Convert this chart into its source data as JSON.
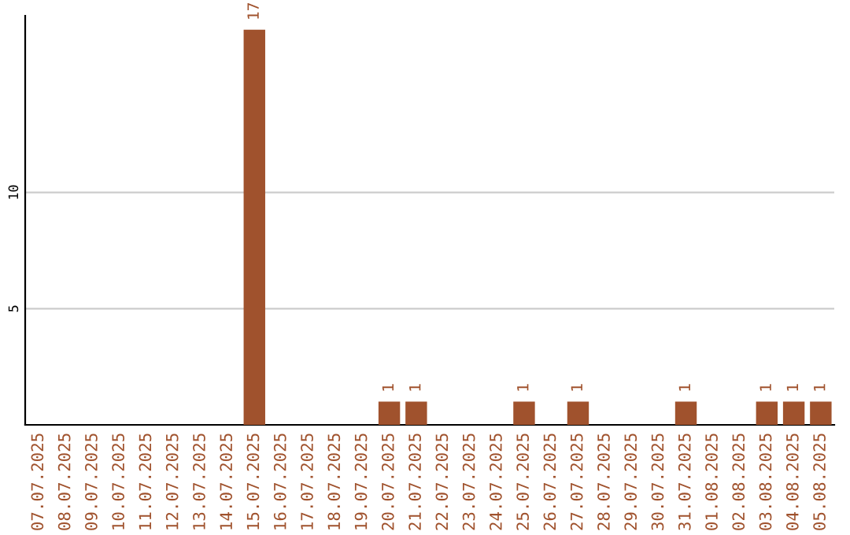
{
  "chart_data": {
    "type": "bar",
    "categories": [
      "07.07.2025",
      "08.07.2025",
      "09.07.2025",
      "10.07.2025",
      "11.07.2025",
      "12.07.2025",
      "13.07.2025",
      "14.07.2025",
      "15.07.2025",
      "16.07.2025",
      "17.07.2025",
      "18.07.2025",
      "19.07.2025",
      "20.07.2025",
      "21.07.2025",
      "22.07.2025",
      "23.07.2025",
      "24.07.2025",
      "25.07.2025",
      "26.07.2025",
      "27.07.2025",
      "28.07.2025",
      "29.07.2025",
      "30.07.2025",
      "31.07.2025",
      "01.08.2025",
      "02.08.2025",
      "03.08.2025",
      "04.08.2025",
      "05.08.2025"
    ],
    "values": [
      0,
      0,
      0,
      0,
      0,
      0,
      0,
      0,
      17,
      0,
      0,
      0,
      0,
      1,
      1,
      0,
      0,
      0,
      1,
      0,
      1,
      0,
      0,
      0,
      1,
      0,
      0,
      1,
      1,
      1
    ],
    "value_labels": [
      null,
      null,
      null,
      null,
      null,
      null,
      null,
      null,
      "17",
      null,
      null,
      null,
      null,
      "1",
      "1",
      null,
      null,
      null,
      "1",
      null,
      "1",
      null,
      null,
      null,
      "1",
      null,
      null,
      "1",
      "1",
      "1"
    ],
    "color": "#a0522d",
    "ylim": [
      0,
      17.6
    ],
    "yticks": [
      5,
      10
    ],
    "grid": "y"
  }
}
